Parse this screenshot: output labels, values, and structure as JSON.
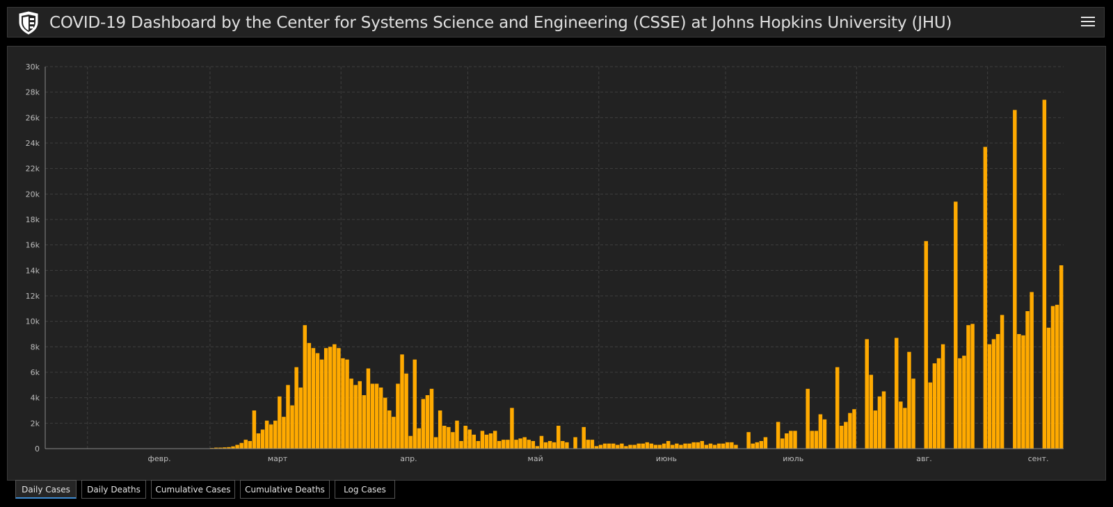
{
  "header": {
    "title": "COVID-19 Dashboard by the Center for Systems Science and Engineering (CSSE) at Johns Hopkins University (JHU)",
    "logo_icon": "jhu-shield-icon",
    "menu_icon": "hamburger-menu-icon"
  },
  "colors": {
    "bar": "#ffaa00",
    "background": "#222222",
    "grid": "#3f3f3f",
    "axis": "#8a8a8a",
    "active_tab_accent": "#3f8ed6"
  },
  "tabs": [
    {
      "label": "Daily Cases",
      "active": true
    },
    {
      "label": "Daily Deaths",
      "active": false
    },
    {
      "label": "Cumulative Cases",
      "active": false
    },
    {
      "label": "Cumulative Deaths",
      "active": false
    },
    {
      "label": "Log Cases",
      "active": false
    }
  ],
  "chart_data": {
    "type": "bar",
    "title": "",
    "xlabel": "",
    "ylabel": "",
    "ylim": [
      0,
      30000
    ],
    "y_ticks": [
      "0",
      "2k",
      "4k",
      "6k",
      "8k",
      "10k",
      "12k",
      "14k",
      "16k",
      "18k",
      "20k",
      "22k",
      "24k",
      "26k",
      "28k",
      "30k"
    ],
    "x_ticks": [
      "февр.",
      "март",
      "апр.",
      "май",
      "июнь",
      "июль",
      "авг.",
      "сент."
    ],
    "grid": true,
    "legend": "none",
    "x_start": "2020-01-22",
    "values": [
      0,
      0,
      0,
      0,
      0,
      0,
      0,
      0,
      0,
      0,
      0,
      0,
      0,
      0,
      0,
      0,
      0,
      0,
      0,
      0,
      0,
      0,
      0,
      0,
      0,
      0,
      0,
      0,
      0,
      0,
      0,
      0,
      0,
      0,
      0,
      0,
      0,
      0,
      0,
      50,
      80,
      80,
      100,
      120,
      180,
      300,
      450,
      700,
      600,
      3000,
      1200,
      1500,
      2200,
      1900,
      2200,
      4100,
      2500,
      5000,
      3400,
      6400,
      4800,
      9700,
      8300,
      7900,
      7500,
      7000,
      7900,
      8000,
      8200,
      7900,
      7100,
      7000,
      5500,
      5000,
      5300,
      4200,
      6300,
      5100,
      5100,
      4800,
      4000,
      3000,
      2500,
      5100,
      7400,
      5900,
      1000,
      7000,
      1600,
      3900,
      4200,
      4700,
      900,
      3000,
      1800,
      1700,
      1300,
      2200,
      600,
      1800,
      1500,
      1100,
      600,
      1400,
      1100,
      1200,
      1400,
      600,
      700,
      700,
      3200,
      700,
      800,
      900,
      700,
      600,
      200,
      1000,
      500,
      600,
      500,
      1800,
      600,
      500,
      0,
      900,
      0,
      1700,
      700,
      700,
      200,
      300,
      400,
      400,
      400,
      300,
      400,
      200,
      300,
      300,
      400,
      400,
      500,
      400,
      300,
      300,
      400,
      600,
      300,
      400,
      300,
      400,
      400,
      500,
      500,
      600,
      300,
      400,
      300,
      400,
      400,
      500,
      500,
      300,
      0,
      0,
      1300,
      400,
      500,
      600,
      900,
      0,
      0,
      2100,
      800,
      1200,
      1400,
      1400,
      0,
      0,
      4700,
      1400,
      1400,
      2700,
      2300,
      0,
      0,
      6400,
      1800,
      2100,
      2800,
      3100,
      0,
      0,
      8600,
      5800,
      3000,
      4100,
      4500,
      0,
      0,
      8700,
      3700,
      3200,
      7600,
      5500,
      0,
      0,
      16300,
      5200,
      6700,
      7100,
      8200,
      0,
      0,
      19400,
      7100,
      7300,
      9700,
      9800,
      0,
      0,
      23700,
      8200,
      8600,
      9000,
      10500,
      0,
      0,
      26600,
      9000,
      8900,
      10800,
      12300,
      0,
      0,
      27400,
      9500,
      11200,
      11300,
      14400
    ]
  }
}
